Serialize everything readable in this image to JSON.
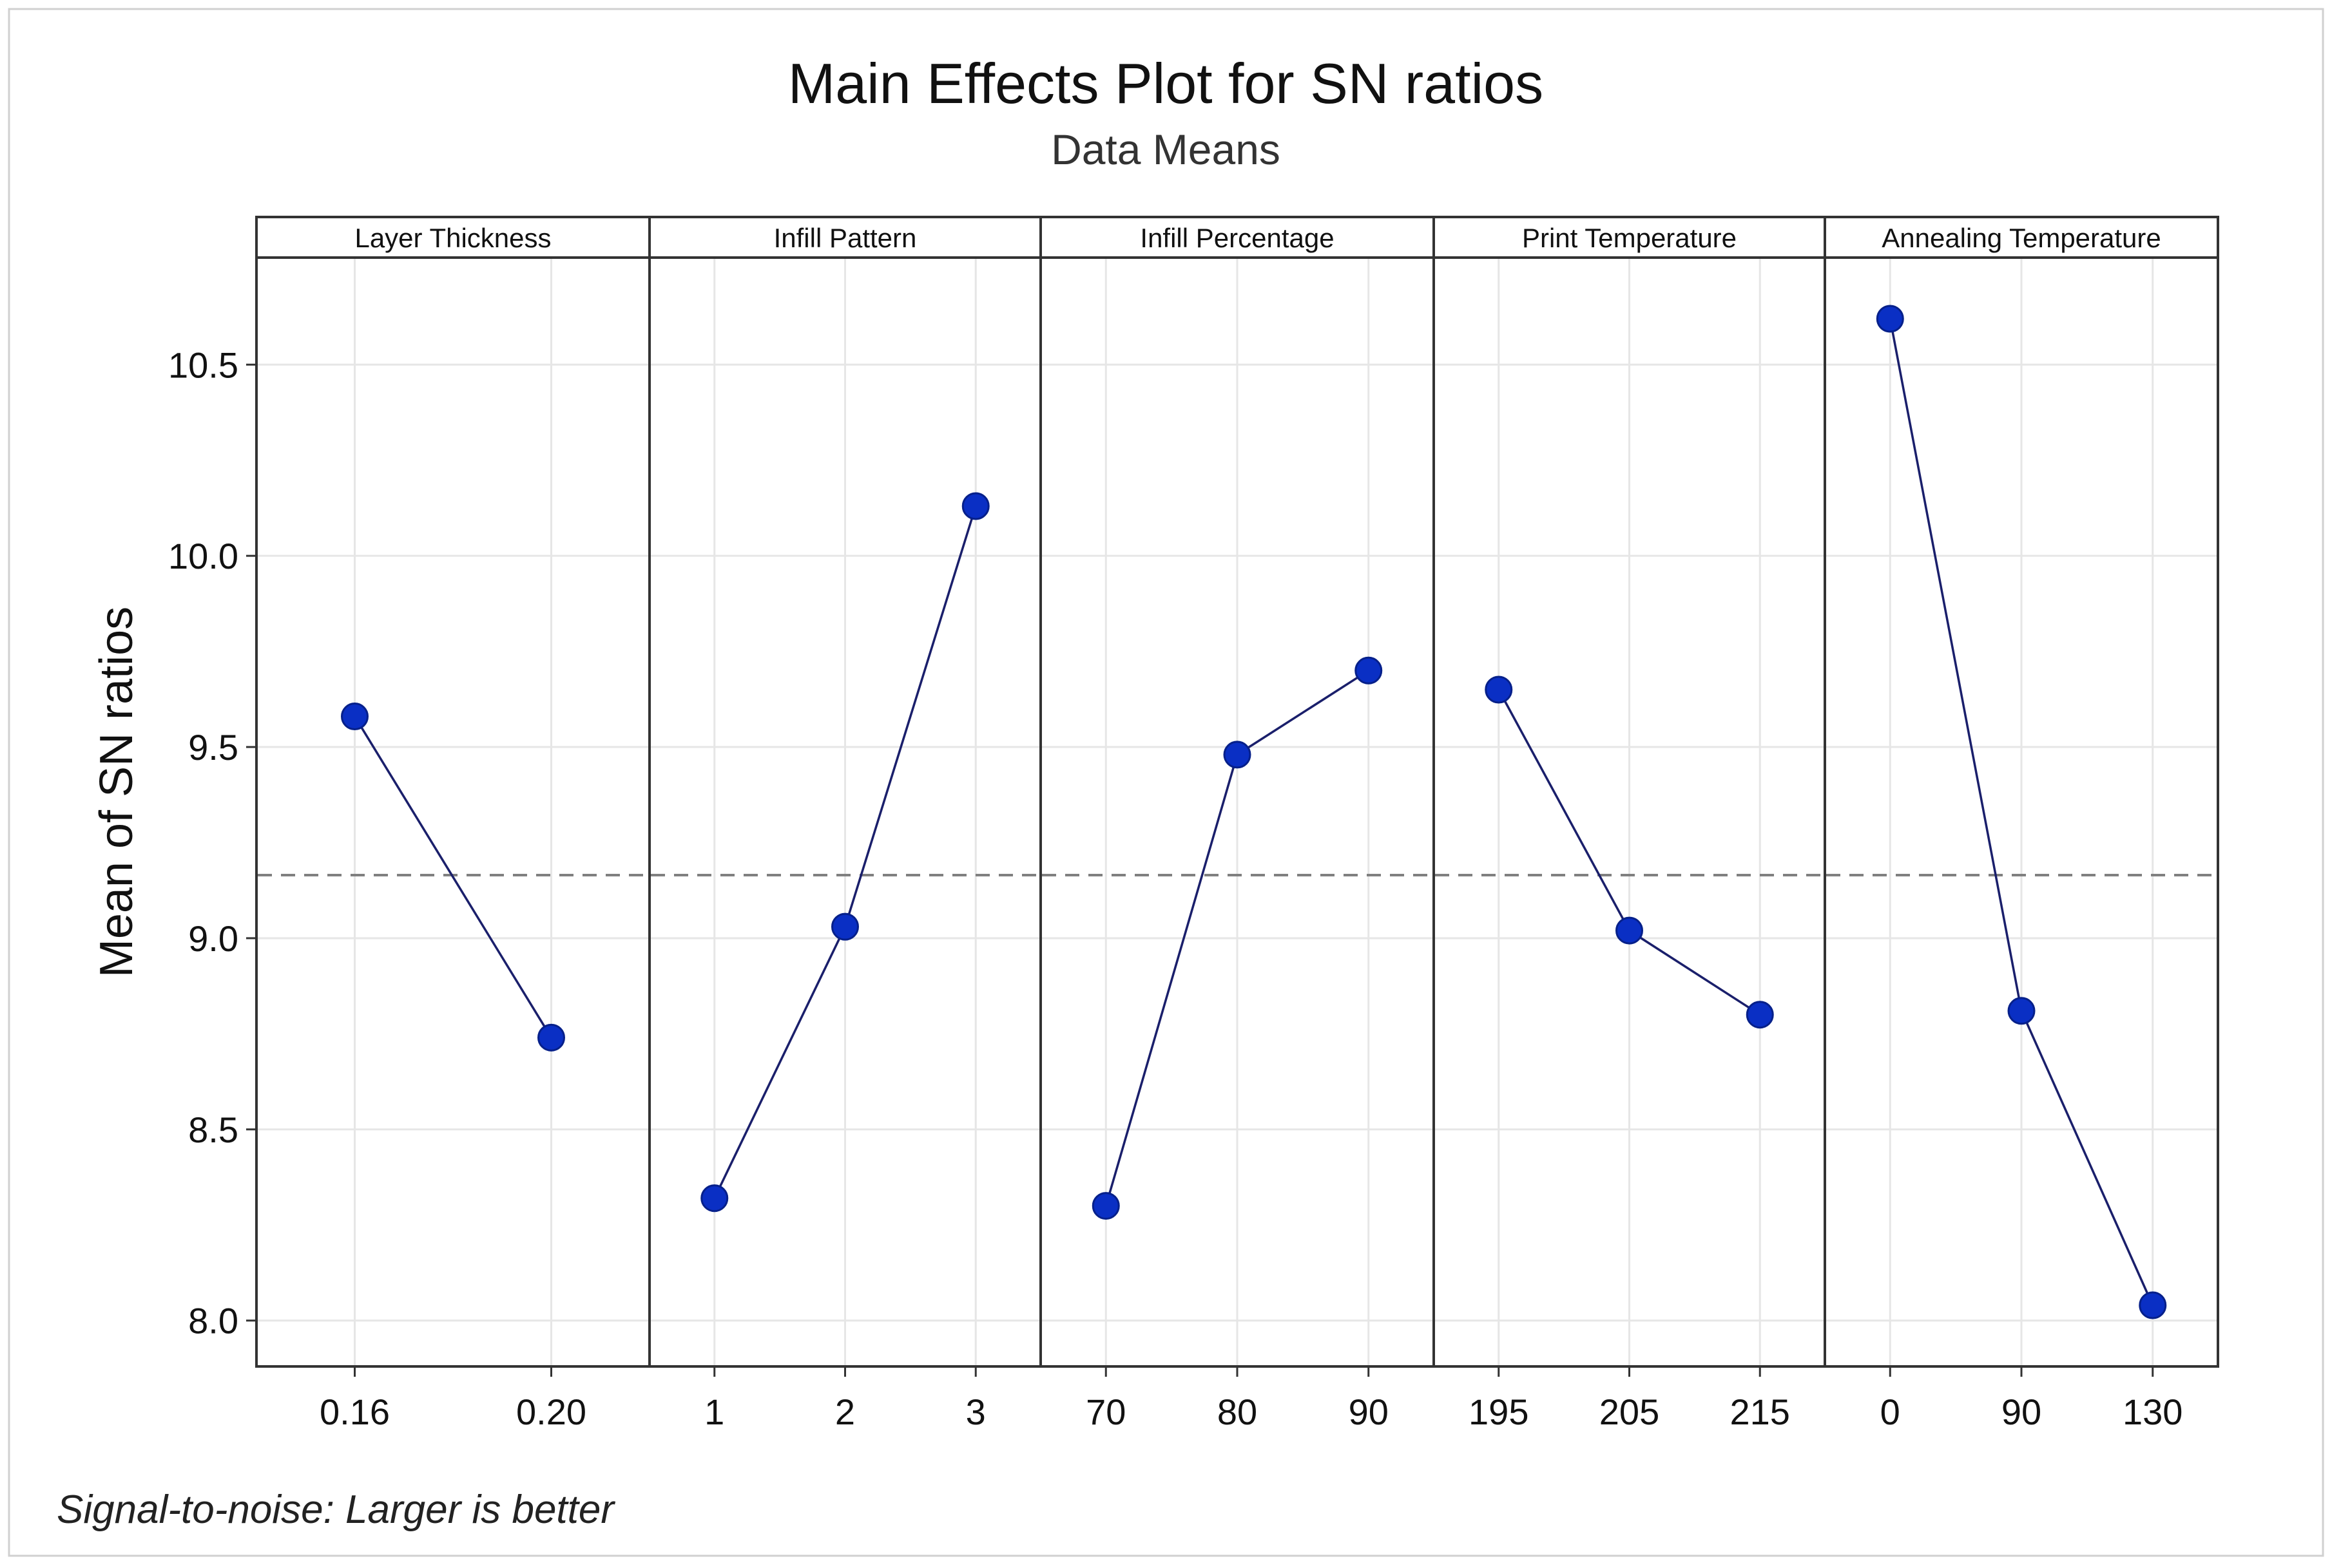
{
  "chart_data": {
    "type": "line",
    "title": "Main Effects Plot for SN ratios",
    "subtitle": "Data Means",
    "ylabel": "Mean of SN ratios",
    "ylim": [
      7.88,
      10.78
    ],
    "yticks": [
      8.0,
      8.5,
      9.0,
      9.5,
      10.0,
      10.5
    ],
    "ytick_labels": [
      "8.0",
      "8.5",
      "9.0",
      "9.5",
      "10.0",
      "10.5"
    ],
    "reference_line": 9.165,
    "footnote": "Signal-to-noise: Larger is better",
    "grid": true,
    "colors": {
      "line": "#1a1f6b",
      "marker": "#0a2fc4",
      "reference": "#808080",
      "frame": "#333333",
      "grid": "#e6e6e6"
    },
    "panels": [
      {
        "name": "Layer Thickness",
        "levels": [
          "0.16",
          "0.20"
        ],
        "values": [
          9.58,
          8.74
        ]
      },
      {
        "name": "Infill Pattern",
        "levels": [
          "1",
          "2",
          "3"
        ],
        "values": [
          8.32,
          9.03,
          10.13
        ]
      },
      {
        "name": "Infill Percentage",
        "levels": [
          "70",
          "80",
          "90"
        ],
        "values": [
          8.3,
          9.48,
          9.7
        ]
      },
      {
        "name": "Print Temperature",
        "levels": [
          "195",
          "205",
          "215"
        ],
        "values": [
          9.65,
          9.02,
          8.8
        ]
      },
      {
        "name": "Annealing Temperature",
        "levels": [
          "0",
          "90",
          "130"
        ],
        "values": [
          10.62,
          8.81,
          8.04
        ]
      }
    ]
  }
}
